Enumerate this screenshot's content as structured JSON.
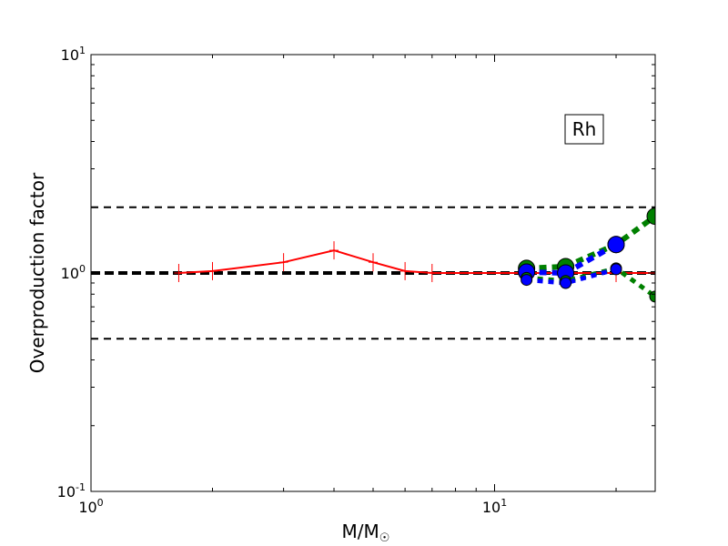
{
  "chart_data": {
    "type": "line",
    "xscale": "log",
    "yscale": "log",
    "xlim": [
      1,
      25
    ],
    "ylim": [
      0.1,
      10
    ],
    "xlabel_main": "M/M",
    "xlabel_sub": "☉",
    "ylabel": "Overproduction factor",
    "annotation": "Rh",
    "xticks": [
      {
        "value": 1,
        "base": "10",
        "exp": "0"
      },
      {
        "value": 10,
        "base": "10",
        "exp": "1"
      }
    ],
    "yticks": [
      {
        "value": 0.1,
        "base": "10",
        "exp": "-1"
      },
      {
        "value": 1,
        "base": "10",
        "exp": "0"
      },
      {
        "value": 10,
        "base": "10",
        "exp": "1"
      }
    ],
    "reference_lines": [
      {
        "y": 2.0,
        "style": "dashed",
        "color": "#000000",
        "width": 2
      },
      {
        "y": 0.5,
        "style": "dashed",
        "color": "#000000",
        "width": 2
      },
      {
        "y": 1.0,
        "style": "dashed",
        "color": "#000000",
        "width": 4
      }
    ],
    "series": [
      {
        "color": "#ff0000",
        "style": "solid",
        "marker": "plus",
        "x": [
          1.65,
          2.0,
          3.0,
          4.0,
          5.0,
          6.0,
          7.0,
          12.0,
          15.0,
          20.0,
          25.0
        ],
        "y": [
          1.0,
          1.02,
          1.12,
          1.27,
          1.12,
          1.02,
          1.0,
          1.0,
          1.0,
          1.0,
          1.0
        ]
      },
      {
        "color": "#008000",
        "style": "dotted",
        "marker": "circle-large",
        "x": [
          12.0,
          15.0,
          20.0,
          25.0
        ],
        "y": [
          1.05,
          1.07,
          1.35,
          1.82
        ]
      },
      {
        "color": "#0000ff",
        "style": "dotted",
        "marker": "circle-large",
        "x": [
          12.0,
          15.0,
          20.0
        ],
        "y": [
          1.01,
          1.0,
          1.35
        ]
      },
      {
        "color": "#008000",
        "style": "dotted",
        "marker": "circle-small",
        "x": [
          12.0,
          15.0,
          20.0,
          25.0
        ],
        "y": [
          0.95,
          0.92,
          1.05,
          0.78
        ]
      },
      {
        "color": "#0000ff",
        "style": "dotted",
        "marker": "circle-small",
        "x": [
          12.0,
          15.0,
          20.0
        ],
        "y": [
          0.93,
          0.9,
          1.04
        ]
      }
    ]
  }
}
